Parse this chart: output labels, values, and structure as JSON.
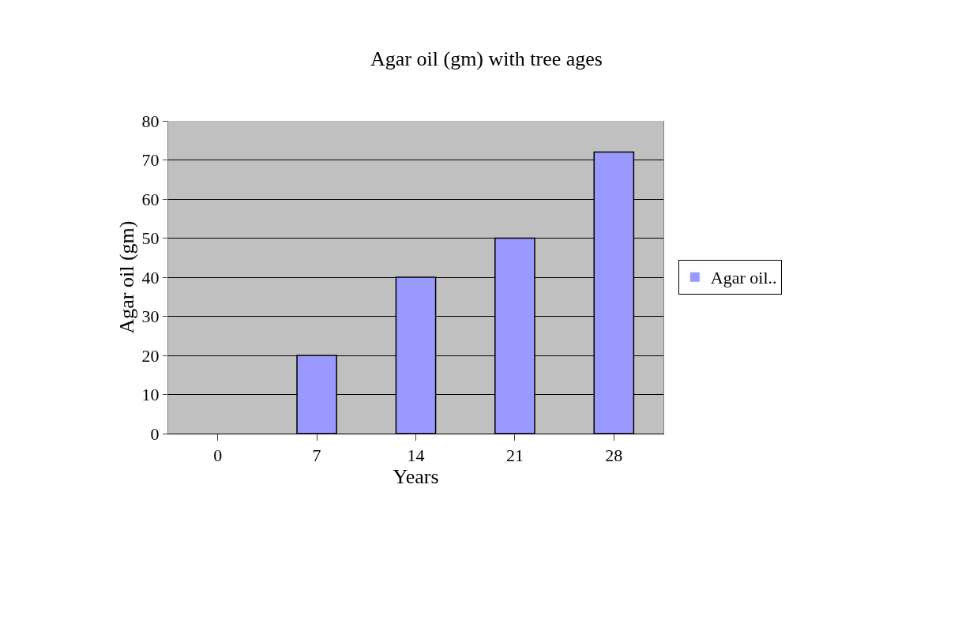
{
  "chart_data": {
    "type": "bar",
    "title": "Agar oil (gm) with tree ages",
    "xlabel": "Years",
    "ylabel": "Agar oil (gm)",
    "categories": [
      "0",
      "7",
      "14",
      "21",
      "28"
    ],
    "series": [
      {
        "name": "Agar oil..",
        "color": "#9999ff",
        "values": [
          0,
          20,
          40,
          50,
          72
        ]
      }
    ],
    "ylim": [
      0,
      80
    ],
    "yticks": [
      0,
      10,
      20,
      30,
      40,
      50,
      60,
      70,
      80
    ],
    "grid": "y",
    "legend": "right"
  }
}
